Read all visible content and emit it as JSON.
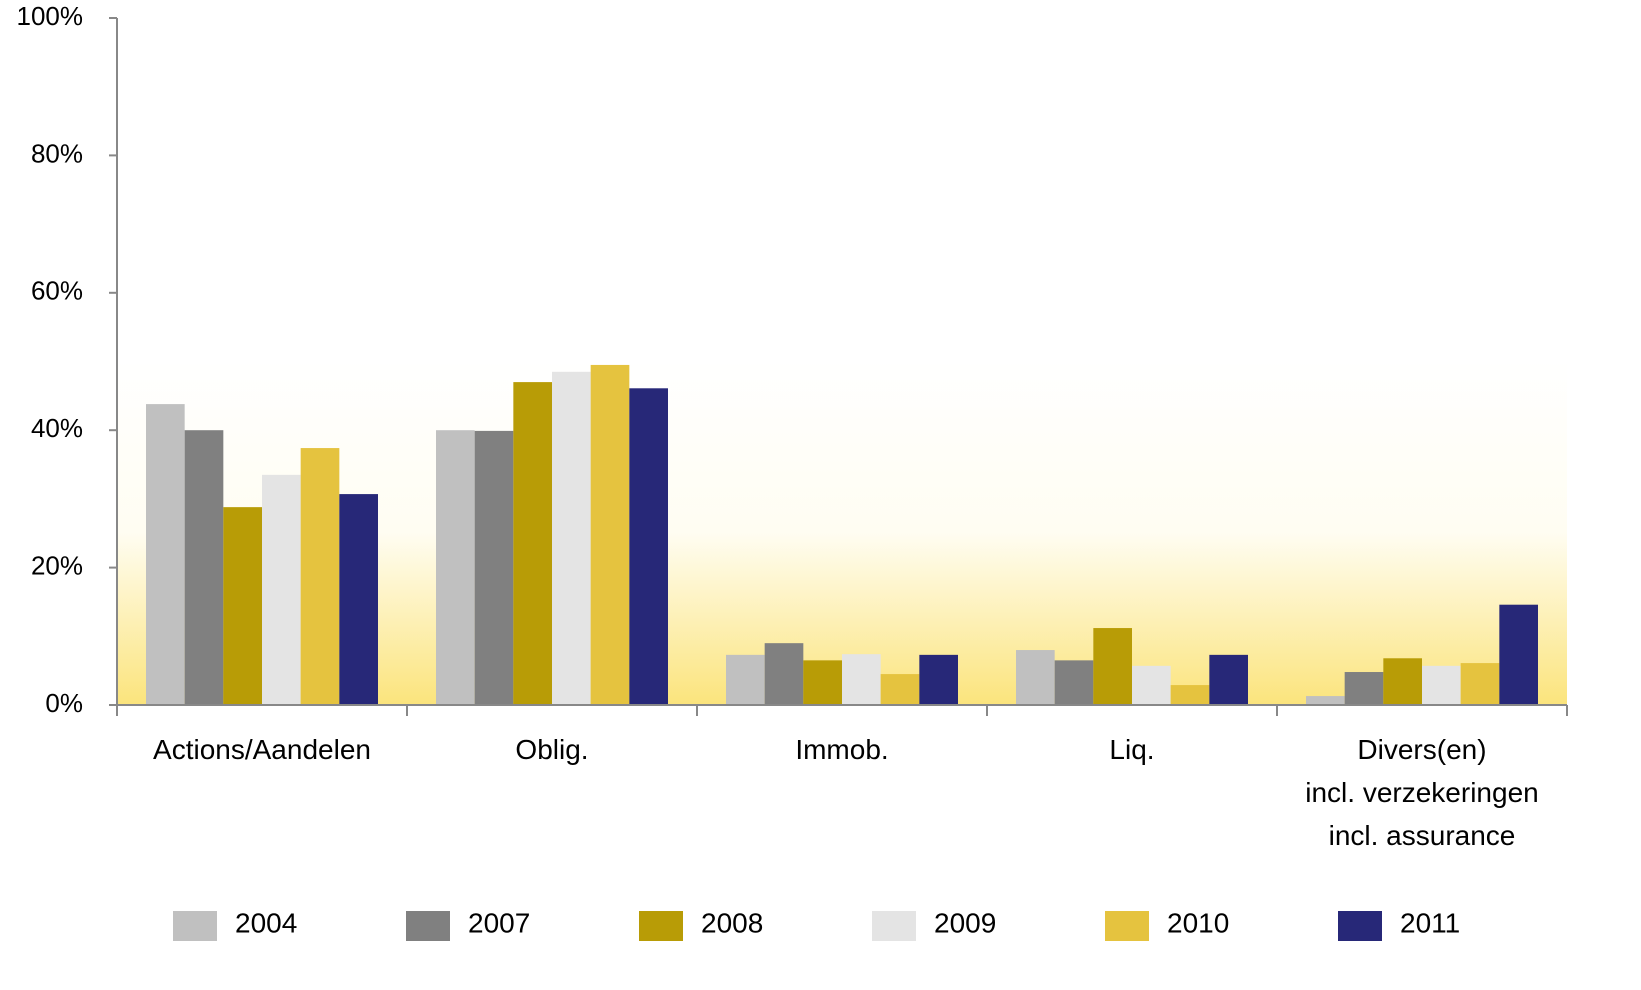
{
  "chart_data": {
    "type": "bar",
    "categories": [
      "Actions/Aandelen",
      "Oblig.",
      "Immob.",
      "Liq.",
      "Divers(en)\nincl. verzekeringen\nincl. assurance"
    ],
    "series": [
      {
        "name": "2004",
        "color": "#c0c0c0",
        "values": [
          43.8,
          40.0,
          7.3,
          8.0,
          1.3
        ]
      },
      {
        "name": "2007",
        "color": "#808080",
        "values": [
          40.0,
          39.9,
          9.0,
          6.5,
          4.8
        ]
      },
      {
        "name": "2008",
        "color": "#b89c06",
        "values": [
          28.8,
          47.0,
          6.5,
          11.2,
          6.8
        ]
      },
      {
        "name": "2009",
        "color": "#e4e4e4",
        "values": [
          33.5,
          48.5,
          7.4,
          5.7,
          5.7
        ]
      },
      {
        "name": "2010",
        "color": "#e5c33f",
        "values": [
          37.4,
          49.5,
          4.5,
          2.9,
          6.1
        ]
      },
      {
        "name": "2011",
        "color": "#272878",
        "values": [
          30.7,
          46.1,
          7.3,
          7.3,
          14.6
        ]
      }
    ],
    "ylim": [
      0,
      100
    ],
    "yticks": [
      {
        "value": 0,
        "label": "0%"
      },
      {
        "value": 20,
        "label": "20%"
      },
      {
        "value": 40,
        "label": "40%"
      },
      {
        "value": 60,
        "label": "60%"
      },
      {
        "value": 80,
        "label": "80%"
      },
      {
        "value": 100,
        "label": "100%"
      }
    ],
    "legend": "bottom"
  }
}
